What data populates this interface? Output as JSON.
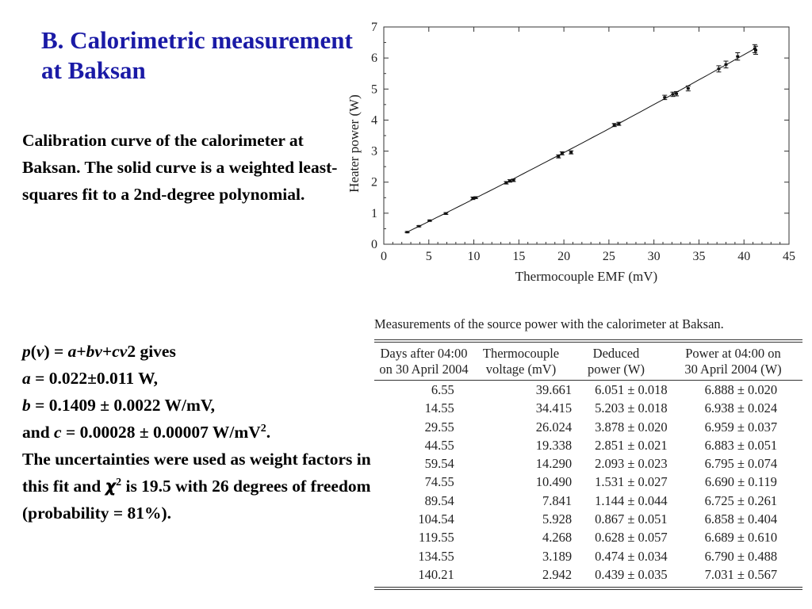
{
  "title": "B. Calorimetric measurement at Baksan",
  "caption": "Calibration curve of the calorimeter at Baksan. The solid curve is a weighted least-squares fit to a 2nd-degree polynomial.",
  "formula": {
    "line1_end": "2 gives",
    "a_val": "= 0.022±0.011 W,",
    "b_val": "= 0.1409 ± 0.0022 W/mV,",
    "c_prefix": "and",
    "c_val": "= 0.00028 ± 0.00007 W/mV",
    "c_exp": "2",
    "c_end": ".",
    "text1": "The uncertainties were used as weight factors in this fit and",
    "chi": "χ",
    "chi_exp": "2",
    "text2": "is 19.5 with 26 degrees of freedom (probability = 81%)."
  },
  "chart_data": {
    "type": "scatter",
    "title": "",
    "xlabel": "Thermocouple EMF (mV)",
    "ylabel": "Heater power (W)",
    "xlim": [
      0,
      45
    ],
    "ylim": [
      0,
      7
    ],
    "xticks": [
      0,
      5,
      10,
      15,
      20,
      25,
      30,
      35,
      40,
      45
    ],
    "yticks": [
      0,
      1,
      2,
      3,
      4,
      5,
      6,
      7
    ],
    "fit": {
      "a": 0.022,
      "b": 0.1409,
      "c": 0.00028,
      "x_range": [
        2.6,
        41.3
      ]
    },
    "points": [
      {
        "x": 2.6,
        "y": 0.39,
        "err": 0.02
      },
      {
        "x": 3.9,
        "y": 0.58,
        "err": 0.02
      },
      {
        "x": 5.1,
        "y": 0.76,
        "err": 0.02
      },
      {
        "x": 6.9,
        "y": 0.99,
        "err": 0.03
      },
      {
        "x": 9.9,
        "y": 1.48,
        "err": 0.04
      },
      {
        "x": 10.2,
        "y": 1.5,
        "err": 0.03
      },
      {
        "x": 13.6,
        "y": 1.98,
        "err": 0.04
      },
      {
        "x": 14.0,
        "y": 2.04,
        "err": 0.04
      },
      {
        "x": 14.4,
        "y": 2.06,
        "err": 0.04
      },
      {
        "x": 19.4,
        "y": 2.83,
        "err": 0.05
      },
      {
        "x": 19.8,
        "y": 2.93,
        "err": 0.05
      },
      {
        "x": 20.8,
        "y": 2.96,
        "err": 0.05
      },
      {
        "x": 25.6,
        "y": 3.84,
        "err": 0.05
      },
      {
        "x": 26.1,
        "y": 3.88,
        "err": 0.05
      },
      {
        "x": 31.2,
        "y": 4.73,
        "err": 0.07
      },
      {
        "x": 32.1,
        "y": 4.83,
        "err": 0.07
      },
      {
        "x": 32.5,
        "y": 4.85,
        "err": 0.07
      },
      {
        "x": 33.8,
        "y": 5.02,
        "err": 0.08
      },
      {
        "x": 37.2,
        "y": 5.65,
        "err": 0.1
      },
      {
        "x": 38.0,
        "y": 5.79,
        "err": 0.11
      },
      {
        "x": 39.3,
        "y": 6.05,
        "err": 0.12
      },
      {
        "x": 41.2,
        "y": 6.3,
        "err": 0.13
      },
      {
        "x": 41.3,
        "y": 6.25,
        "err": 0.13
      }
    ]
  },
  "table": {
    "caption": "Measurements of the source power with the calorimeter at Baksan.",
    "headers": [
      [
        "Days after 04:00",
        "on 30 April 2004"
      ],
      [
        "Thermocouple",
        "voltage (mV)"
      ],
      [
        "Deduced",
        "power (W)"
      ],
      [
        "Power at 04:00 on",
        "30 April 2004 (W)"
      ]
    ],
    "rows": [
      [
        "6.55",
        "39.661",
        "6.051 ± 0.018",
        "6.888 ± 0.020"
      ],
      [
        "14.55",
        "34.415",
        "5.203 ± 0.018",
        "6.938 ± 0.024"
      ],
      [
        "29.55",
        "26.024",
        "3.878 ± 0.020",
        "6.959 ± 0.037"
      ],
      [
        "44.55",
        "19.338",
        "2.851 ± 0.021",
        "6.883 ± 0.051"
      ],
      [
        "59.54",
        "14.290",
        "2.093 ± 0.023",
        "6.795 ± 0.074"
      ],
      [
        "74.55",
        "10.490",
        "1.531 ± 0.027",
        "6.690 ± 0.119"
      ],
      [
        "89.54",
        "7.841",
        "1.144 ± 0.044",
        "6.725 ± 0.261"
      ],
      [
        "104.54",
        "5.928",
        "0.867 ± 0.051",
        "6.858 ± 0.404"
      ],
      [
        "119.55",
        "4.268",
        "0.628 ± 0.057",
        "6.689 ± 0.610"
      ],
      [
        "134.55",
        "3.189",
        "0.474 ± 0.034",
        "6.790 ± 0.488"
      ],
      [
        "140.21",
        "2.942",
        "0.439 ± 0.035",
        "7.031 ± 0.567"
      ]
    ]
  }
}
